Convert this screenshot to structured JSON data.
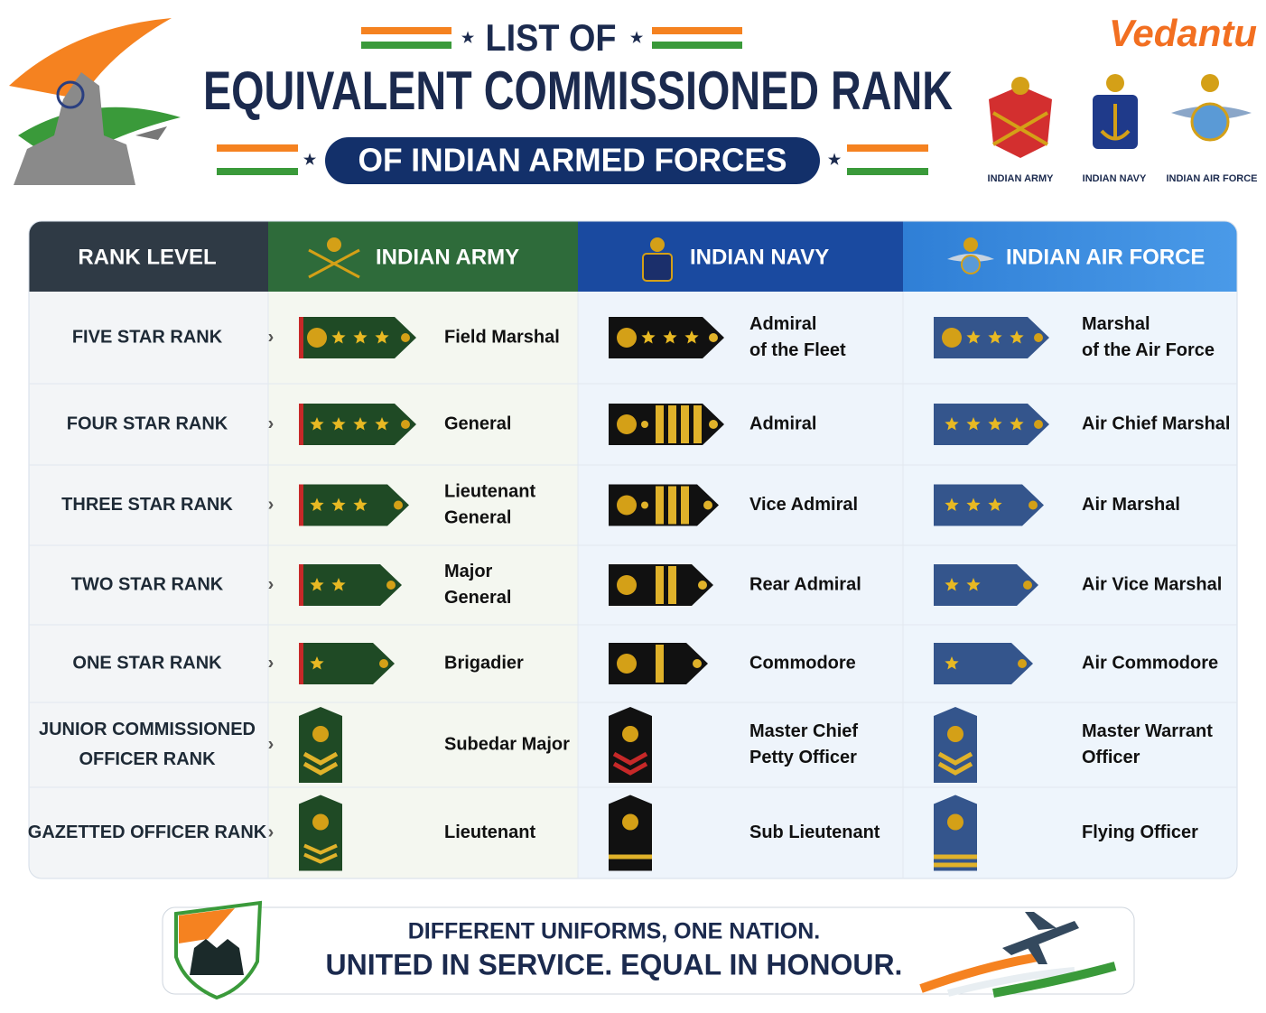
{
  "header": {
    "title_line1": "LIST OF",
    "title_line2": "EQUIVALENT COMMISSIONED RANK",
    "subtitle": "OF INDIAN ARMED FORCES",
    "brand": "Vedantu",
    "emblems": [
      "INDIAN ARMY",
      "INDIAN NAVY",
      "INDIAN AIR FORCE"
    ]
  },
  "table": {
    "columns": [
      "RANK LEVEL",
      "INDIAN ARMY",
      "INDIAN NAVY",
      "INDIAN AIR FORCE"
    ],
    "rows": [
      {
        "level": [
          "FIVE STAR RANK"
        ],
        "army": [
          "Field Marshal"
        ],
        "navy": [
          "Admiral",
          "of the Fleet"
        ],
        "air": [
          "Marshal",
          "of the Air Force"
        ]
      },
      {
        "level": [
          "FOUR STAR RANK"
        ],
        "army": [
          "General"
        ],
        "navy": [
          "Admiral"
        ],
        "air": [
          "Air Chief Marshal"
        ]
      },
      {
        "level": [
          "THREE STAR RANK"
        ],
        "army": [
          "Lieutenant",
          "General"
        ],
        "navy": [
          "Vice Admiral"
        ],
        "air": [
          "Air Marshal"
        ]
      },
      {
        "level": [
          "TWO STAR RANK"
        ],
        "army": [
          "Major",
          "General"
        ],
        "navy": [
          "Rear Admiral"
        ],
        "air": [
          "Air Vice Marshal"
        ]
      },
      {
        "level": [
          "ONE STAR RANK"
        ],
        "army": [
          "Brigadier"
        ],
        "navy": [
          "Commodore"
        ],
        "air": [
          "Air Commodore"
        ]
      },
      {
        "level": [
          "JUNIOR COMMISSIONED",
          "OFFICER RANK"
        ],
        "army": [
          "Subedar Major"
        ],
        "navy": [
          "Master Chief",
          "Petty Officer"
        ],
        "air": [
          "Master Warrant",
          "Officer"
        ]
      },
      {
        "level": [
          "GAZETTED OFFICER RANK"
        ],
        "army": [
          "Lieutenant"
        ],
        "navy": [
          "Sub Lieutenant"
        ],
        "air": [
          "Flying Officer"
        ]
      }
    ]
  },
  "footer": {
    "line1": "DIFFERENT UNIFORMS, ONE NATION.",
    "line2": "UNITED IN SERVICE.  EQUAL IN HONOUR."
  }
}
